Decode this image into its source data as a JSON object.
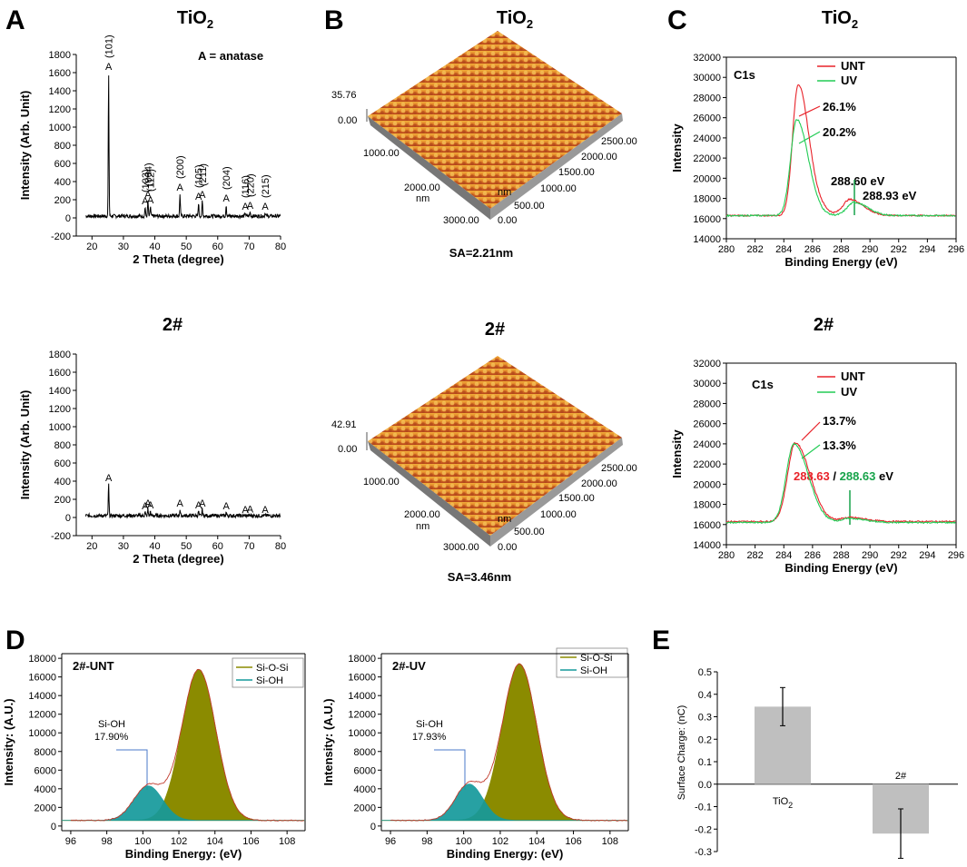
{
  "panel_letters": {
    "A": "A",
    "B": "B",
    "C": "C",
    "D": "D",
    "E": "E"
  },
  "xrd": {
    "legend_note": "A = anatase",
    "xlabel": "2 Theta (degree)",
    "ylabel": "Intensity (Arb. Unit)",
    "peak_symbol": "A"
  },
  "afm": {
    "tio2": {
      "sa": "SA=2.21nm",
      "z_max": "35.76",
      "z_min": "0.00"
    },
    "sample2": {
      "sa": "SA=3.46nm",
      "z_max": "42.91",
      "z_min": "0.00"
    },
    "left_ticks": [
      "0.00",
      "1000.00",
      "2000.00",
      "3000.00"
    ],
    "right_ticks": [
      "0.00",
      "500.00",
      "1000.00",
      "1500.00",
      "2000.00",
      "2500.00"
    ],
    "unit": "nm"
  },
  "xps_c1s": {
    "label": "C1s",
    "xlabel": "Binding Energy (eV)",
    "ylabel": "Intensity",
    "legend": [
      "UNT",
      "UV"
    ],
    "tio2": {
      "ann_unt": "26.1%",
      "ann_uv": "20.2%",
      "ann_peak_unt": "288.60 eV",
      "ann_peak_uv": "288.93 eV"
    },
    "sample2": {
      "ann_unt": "13.7%",
      "ann_uv": "13.3%",
      "ann_peak_unt": "288.63",
      "ann_sep": " / ",
      "ann_peak_uv": "288.63",
      "ann_unit": " eV"
    }
  },
  "si2p": {
    "xlabel": "Binding Energy: (eV)",
    "ylabel": "Intensity: (A.U.)",
    "legend": [
      "Si-O-Si",
      "Si-OH"
    ],
    "unt": {
      "label": "2#-UNT",
      "ann_name": "Si-OH",
      "ann_pct": "17.90%"
    },
    "uv": {
      "label": "2#-UV",
      "ann_name": "Si-OH",
      "ann_pct": "17.93%"
    }
  },
  "colors": {
    "unt": "#e8232a",
    "uv": "#22cc55",
    "unt_text": "#e8232a",
    "uv_text": "#17a34a",
    "olive": "#8b8b00",
    "teal": "#159a9c",
    "bar": "#bfbfbf"
  },
  "chart_data": [
    {
      "id": "xrd_tio2",
      "type": "line",
      "title": "TiO2",
      "xlabel": "2 Theta (degree)",
      "ylabel": "Intensity (Arb. Unit)",
      "xlim": [
        15,
        80
      ],
      "ylim": [
        -200,
        1800
      ],
      "xticks": [
        20,
        30,
        40,
        50,
        60,
        70,
        80
      ],
      "yticks": [
        -200,
        0,
        200,
        400,
        600,
        800,
        1000,
        1200,
        1400,
        1600,
        1800
      ],
      "baseline": 20,
      "peaks": [
        {
          "x": 25.3,
          "y": 1600,
          "hkl": "(101)"
        },
        {
          "x": 36.9,
          "y": 120,
          "hkl": "(103)"
        },
        {
          "x": 37.8,
          "y": 190,
          "hkl": "(004)"
        },
        {
          "x": 38.6,
          "y": 130,
          "hkl": "(112)"
        },
        {
          "x": 48.0,
          "y": 270,
          "hkl": "(200)"
        },
        {
          "x": 53.9,
          "y": 170,
          "hkl": "(105)"
        },
        {
          "x": 55.1,
          "y": 190,
          "hkl": "(211)"
        },
        {
          "x": 62.7,
          "y": 150,
          "hkl": "(204)"
        },
        {
          "x": 68.8,
          "y": 60,
          "hkl": "(116)"
        },
        {
          "x": 70.3,
          "y": 70,
          "hkl": "(220)"
        },
        {
          "x": 75.1,
          "y": 60,
          "hkl": "(215)"
        }
      ]
    },
    {
      "id": "xrd_2",
      "type": "line",
      "title": "2#",
      "xlabel": "2 Theta (degree)",
      "ylabel": "Intensity (Arb. Unit)",
      "xlim": [
        15,
        80
      ],
      "ylim": [
        -200,
        1800
      ],
      "xticks": [
        20,
        30,
        40,
        50,
        60,
        70,
        80
      ],
      "yticks": [
        -200,
        0,
        200,
        400,
        600,
        800,
        1000,
        1200,
        1400,
        1600,
        1800
      ],
      "baseline": 20,
      "peaks": [
        {
          "x": 25.3,
          "y": 370
        },
        {
          "x": 36.9,
          "y": 60
        },
        {
          "x": 37.8,
          "y": 90
        },
        {
          "x": 38.6,
          "y": 70
        },
        {
          "x": 48.0,
          "y": 90
        },
        {
          "x": 53.9,
          "y": 70
        },
        {
          "x": 55.1,
          "y": 90
        },
        {
          "x": 62.7,
          "y": 60
        },
        {
          "x": 68.8,
          "y": 20
        },
        {
          "x": 70.3,
          "y": 25
        },
        {
          "x": 75.1,
          "y": 20
        }
      ]
    },
    {
      "id": "c1s_tio2",
      "type": "line",
      "title": "TiO2",
      "xlabel": "Binding Energy (eV)",
      "ylabel": "Intensity",
      "xlim": [
        280,
        296
      ],
      "ylim": [
        14000,
        32000
      ],
      "xticks": [
        280,
        282,
        284,
        286,
        288,
        290,
        292,
        294,
        296
      ],
      "yticks": [
        14000,
        16000,
        18000,
        20000,
        22000,
        24000,
        26000,
        28000,
        30000,
        32000
      ],
      "series": [
        {
          "name": "UNT",
          "baseline": 16300,
          "peaks": [
            {
              "x": 285.0,
              "y": 29300,
              "w": 0.55
            },
            {
              "x": 288.6,
              "y": 17900,
              "w": 0.7
            }
          ],
          "shoulder": 500
        },
        {
          "name": "UV",
          "baseline": 16300,
          "peaks": [
            {
              "x": 284.9,
              "y": 25800,
              "w": 0.6
            },
            {
              "x": 288.9,
              "y": 17600,
              "w": 0.7
            }
          ],
          "shoulder": 0
        }
      ]
    },
    {
      "id": "c1s_2",
      "type": "line",
      "title": "2#",
      "xlabel": "Binding Energy (eV)",
      "ylabel": "Intensity",
      "xlim": [
        280,
        296
      ],
      "ylim": [
        14000,
        32000
      ],
      "xticks": [
        280,
        282,
        284,
        286,
        288,
        290,
        292,
        294,
        296
      ],
      "yticks": [
        14000,
        16000,
        18000,
        20000,
        22000,
        24000,
        26000,
        28000,
        30000,
        32000
      ],
      "series": [
        {
          "name": "UNT",
          "baseline": 16300,
          "peaks": [
            {
              "x": 284.8,
              "y": 24100,
              "w": 0.75
            },
            {
              "x": 288.6,
              "y": 16700,
              "w": 0.8
            }
          ],
          "shoulder": 0
        },
        {
          "name": "UV",
          "baseline": 16200,
          "peaks": [
            {
              "x": 284.7,
              "y": 24000,
              "w": 0.75
            },
            {
              "x": 288.6,
              "y": 16600,
              "w": 0.8
            }
          ],
          "shoulder": 0
        }
      ]
    },
    {
      "id": "si2p_unt",
      "type": "area",
      "title": "2#-UNT",
      "xlabel": "Binding Energy: (eV)",
      "ylabel": "Intensity: (A.U.)",
      "xlim": [
        95.5,
        109
      ],
      "ylim": [
        -500,
        18500
      ],
      "xticks": [
        96,
        98,
        100,
        102,
        104,
        106,
        108
      ],
      "yticks": [
        0,
        2000,
        4000,
        6000,
        8000,
        10000,
        12000,
        14000,
        16000,
        18000
      ],
      "baseline": 600,
      "series": [
        {
          "name": "Si-O-Si",
          "center": 103.1,
          "height": 16200,
          "sigma": 0.95
        },
        {
          "name": "Si-OH",
          "center": 100.3,
          "height": 3700,
          "sigma": 0.8
        }
      ]
    },
    {
      "id": "si2p_uv",
      "type": "area",
      "title": "2#-UV",
      "xlabel": "Binding Energy: (eV)",
      "ylabel": "Intensity: (A.U.)",
      "xlim": [
        95.5,
        109
      ],
      "ylim": [
        -500,
        18500
      ],
      "xticks": [
        96,
        98,
        100,
        102,
        104,
        106,
        108
      ],
      "yticks": [
        0,
        2000,
        4000,
        6000,
        8000,
        10000,
        12000,
        14000,
        16000,
        18000
      ],
      "baseline": 600,
      "series": [
        {
          "name": "Si-O-Si",
          "center": 103.05,
          "height": 16800,
          "sigma": 0.95
        },
        {
          "name": "Si-OH",
          "center": 100.3,
          "height": 3900,
          "sigma": 0.75
        }
      ]
    },
    {
      "id": "surface_charge",
      "type": "bar",
      "xlabel": "",
      "ylabel": "Surface Charge: (nC)",
      "categories": [
        "TiO2",
        "2#"
      ],
      "values": [
        0.345,
        -0.22
      ],
      "errors": [
        0.085,
        0.11
      ],
      "ylim": [
        -0.3,
        0.5
      ],
      "yticks": [
        -0.3,
        -0.2,
        -0.1,
        0.0,
        0.1,
        0.2,
        0.3,
        0.4,
        0.5
      ],
      "ytick_labels": [
        "-0.3",
        "-0.2",
        "-0.1",
        "0.0",
        "0.1",
        "0.2",
        "0.3",
        "0.4",
        "0.5"
      ]
    }
  ]
}
